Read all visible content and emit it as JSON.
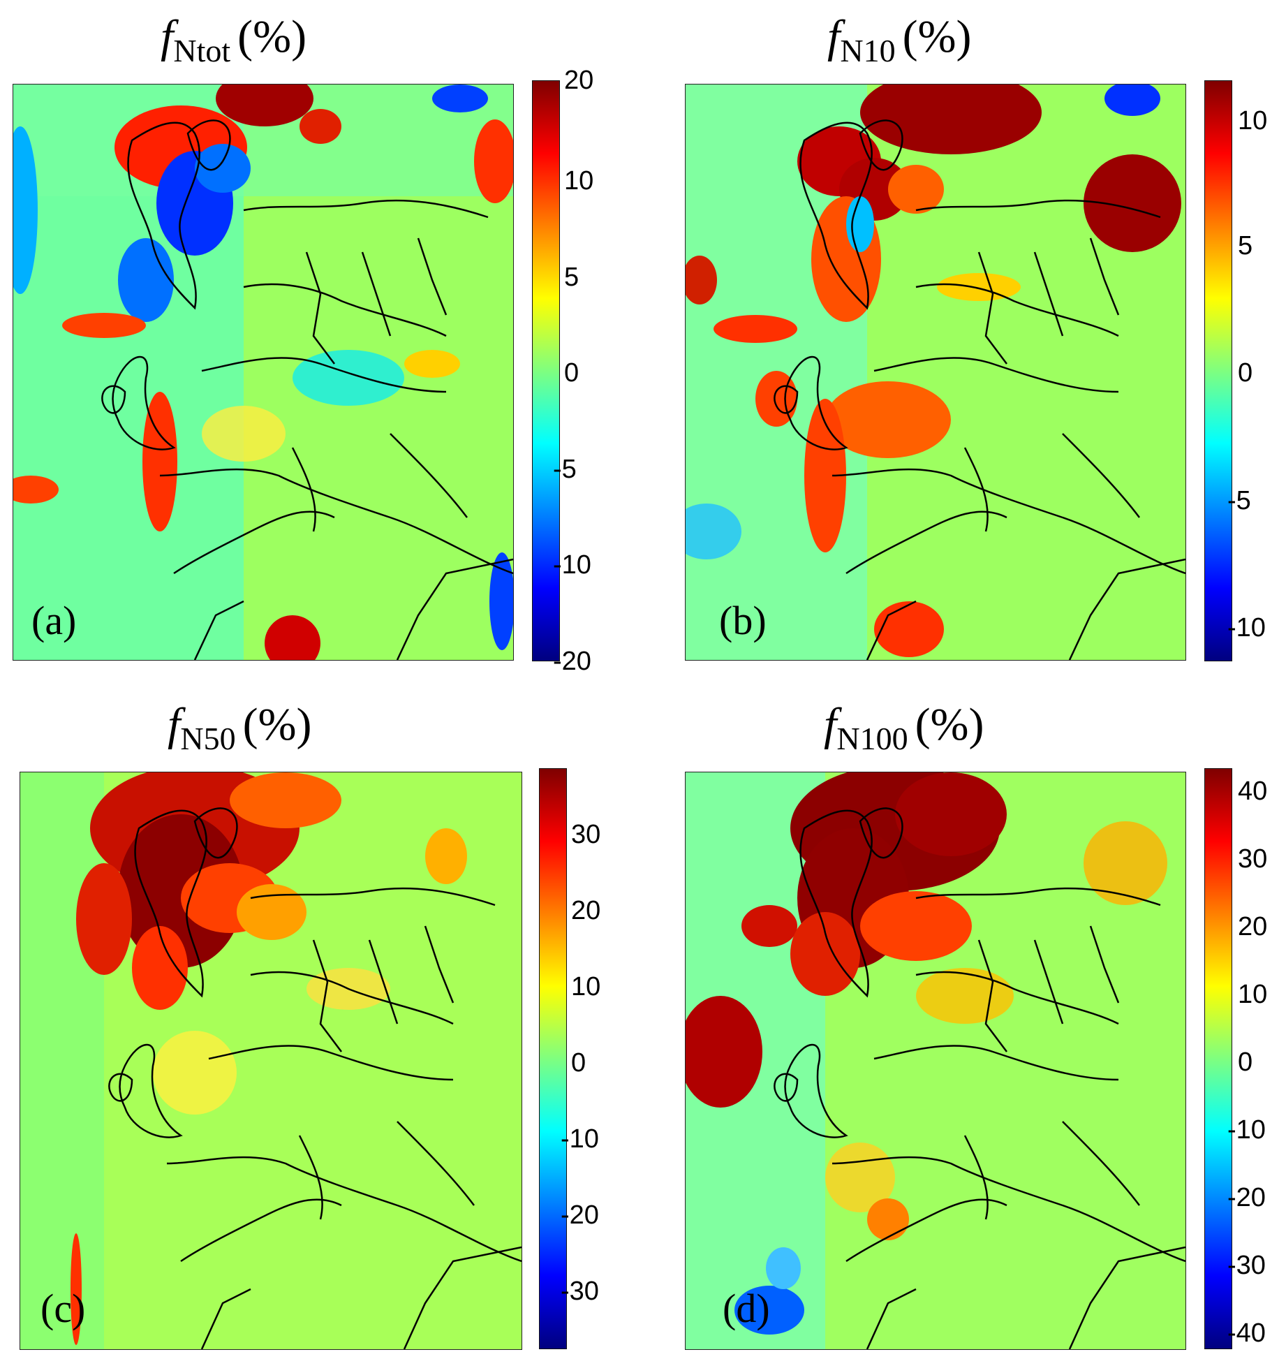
{
  "colormap": [
    "#00007f",
    "#0000ff",
    "#007fff",
    "#00ffff",
    "#7fff7f",
    "#ffff00",
    "#ff7f00",
    "#ff0000",
    "#7f0000"
  ],
  "panels": [
    {
      "id": "a",
      "title_var": "f",
      "title_sub": "Ntot",
      "title_unit": "(%)",
      "label": "(a)",
      "colorbar": {
        "min": -20,
        "max": 20,
        "ticks": [
          "20",
          "10",
          "5",
          "0",
          "-5",
          "-10",
          "-20"
        ],
        "tick_values": [
          20,
          10,
          5,
          0,
          -5,
          -10,
          -20
        ]
      }
    },
    {
      "id": "b",
      "title_var": "f",
      "title_sub": "N10",
      "title_unit": "(%)",
      "label": "(b)",
      "colorbar": {
        "min": -12,
        "max": 12,
        "ticks": [
          "10",
          "5",
          "0",
          "-5",
          "-10"
        ],
        "tick_values": [
          10,
          5,
          0,
          -5,
          -10
        ]
      }
    },
    {
      "id": "c",
      "title_var": "f",
      "title_sub": "N50",
      "title_unit": "(%)",
      "label": "(c)",
      "colorbar": {
        "min": -38,
        "max": 38,
        "ticks": [
          "30",
          "20",
          "10",
          "0",
          "-10",
          "-20",
          "-30"
        ],
        "tick_values": [
          30,
          20,
          10,
          0,
          -10,
          -20,
          -30
        ]
      }
    },
    {
      "id": "d",
      "title_var": "f",
      "title_sub": "N100",
      "title_unit": "(%)",
      "label": "(d)",
      "colorbar": {
        "min": -43,
        "max": 43,
        "ticks": [
          "40",
          "30",
          "20",
          "10",
          "0",
          "-10",
          "-20",
          "-30",
          "-40"
        ],
        "tick_values": [
          40,
          30,
          20,
          10,
          0,
          -10,
          -20,
          -30,
          -40
        ]
      }
    }
  ]
}
